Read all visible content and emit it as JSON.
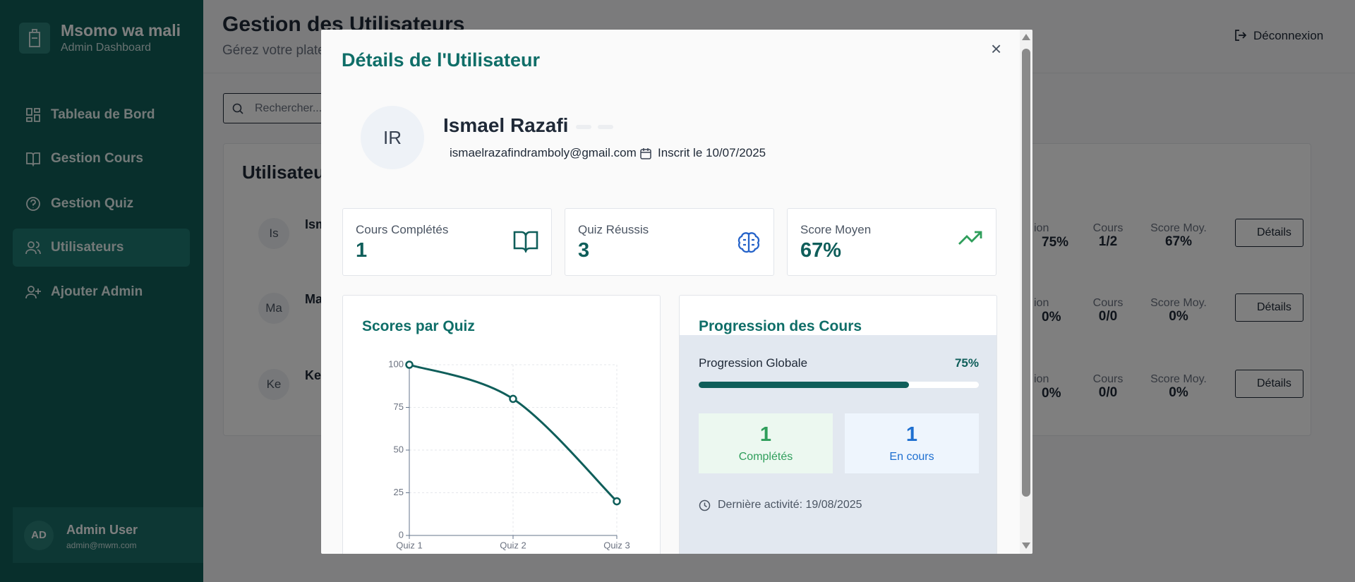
{
  "sidebar": {
    "brand": "Msomo wa mali",
    "subtitle": "Admin Dashboard",
    "nav": [
      "Tableau de Bord",
      "Gestion Cours",
      "Gestion Quiz",
      "Utilisateurs",
      "Ajouter Admin"
    ],
    "user": {
      "initials": "AD",
      "name": "Admin User",
      "email": "admin@mwm.com"
    }
  },
  "header": {
    "title": "Gestion des Utilisateurs",
    "subtitle": "Gérez votre plate",
    "logout": "Déconnexion"
  },
  "search": {
    "placeholder": "Rechercher..."
  },
  "users_card": {
    "title": "Utilisateur",
    "rows": [
      {
        "initials": "Is",
        "name": "Ism",
        "progress_label": "ion",
        "progress": "75%",
        "courses_label": "Cours",
        "courses": "1/2",
        "score_label": "Score Moy.",
        "score": "67%",
        "action": "Détails"
      },
      {
        "initials": "Ma",
        "name": "Ma",
        "progress_label": "ion",
        "progress": "0%",
        "courses_label": "Cours",
        "courses": "0/0",
        "score_label": "Score Moy.",
        "score": "0%",
        "action": "Détails"
      },
      {
        "initials": "Ke",
        "name": "Ke",
        "progress_label": "ion",
        "progress": "0%",
        "courses_label": "Cours",
        "courses": "0/0",
        "score_label": "Score Moy.",
        "score": "0%",
        "action": "Détails"
      }
    ]
  },
  "modal": {
    "title": "Détails de l'Utilisateur",
    "close": "×",
    "initials": "IR",
    "name": "Ismael Razafi",
    "email": "ismaelrazafindramboly@gmail.com",
    "registered": "Inscrit le 10/07/2025",
    "stats": [
      {
        "label": "Cours Complétés",
        "value": "1"
      },
      {
        "label": "Quiz Réussis",
        "value": "3"
      },
      {
        "label": "Score Moyen",
        "value": "67%"
      }
    ],
    "progress": {
      "title": "Progression des Cours",
      "label": "Progression Globale",
      "value": {
        "value": 75,
        "label": "75%"
      },
      "completed": {
        "count": "1",
        "label": "Complétés"
      },
      "in_progress": {
        "count": "1",
        "label": "En cours"
      },
      "last_activity": "Dernière activité: 19/08/2025"
    }
  },
  "chart_data": {
    "type": "line",
    "title": "Scores par Quiz",
    "categories": [
      "Quiz 1",
      "Quiz 2",
      "Quiz 3"
    ],
    "values": [
      100,
      80,
      20
    ],
    "color": "#0f5e5a",
    "ylim": [
      0,
      100
    ],
    "yticks": [
      0,
      25,
      50,
      75,
      100
    ],
    "grid": true
  }
}
